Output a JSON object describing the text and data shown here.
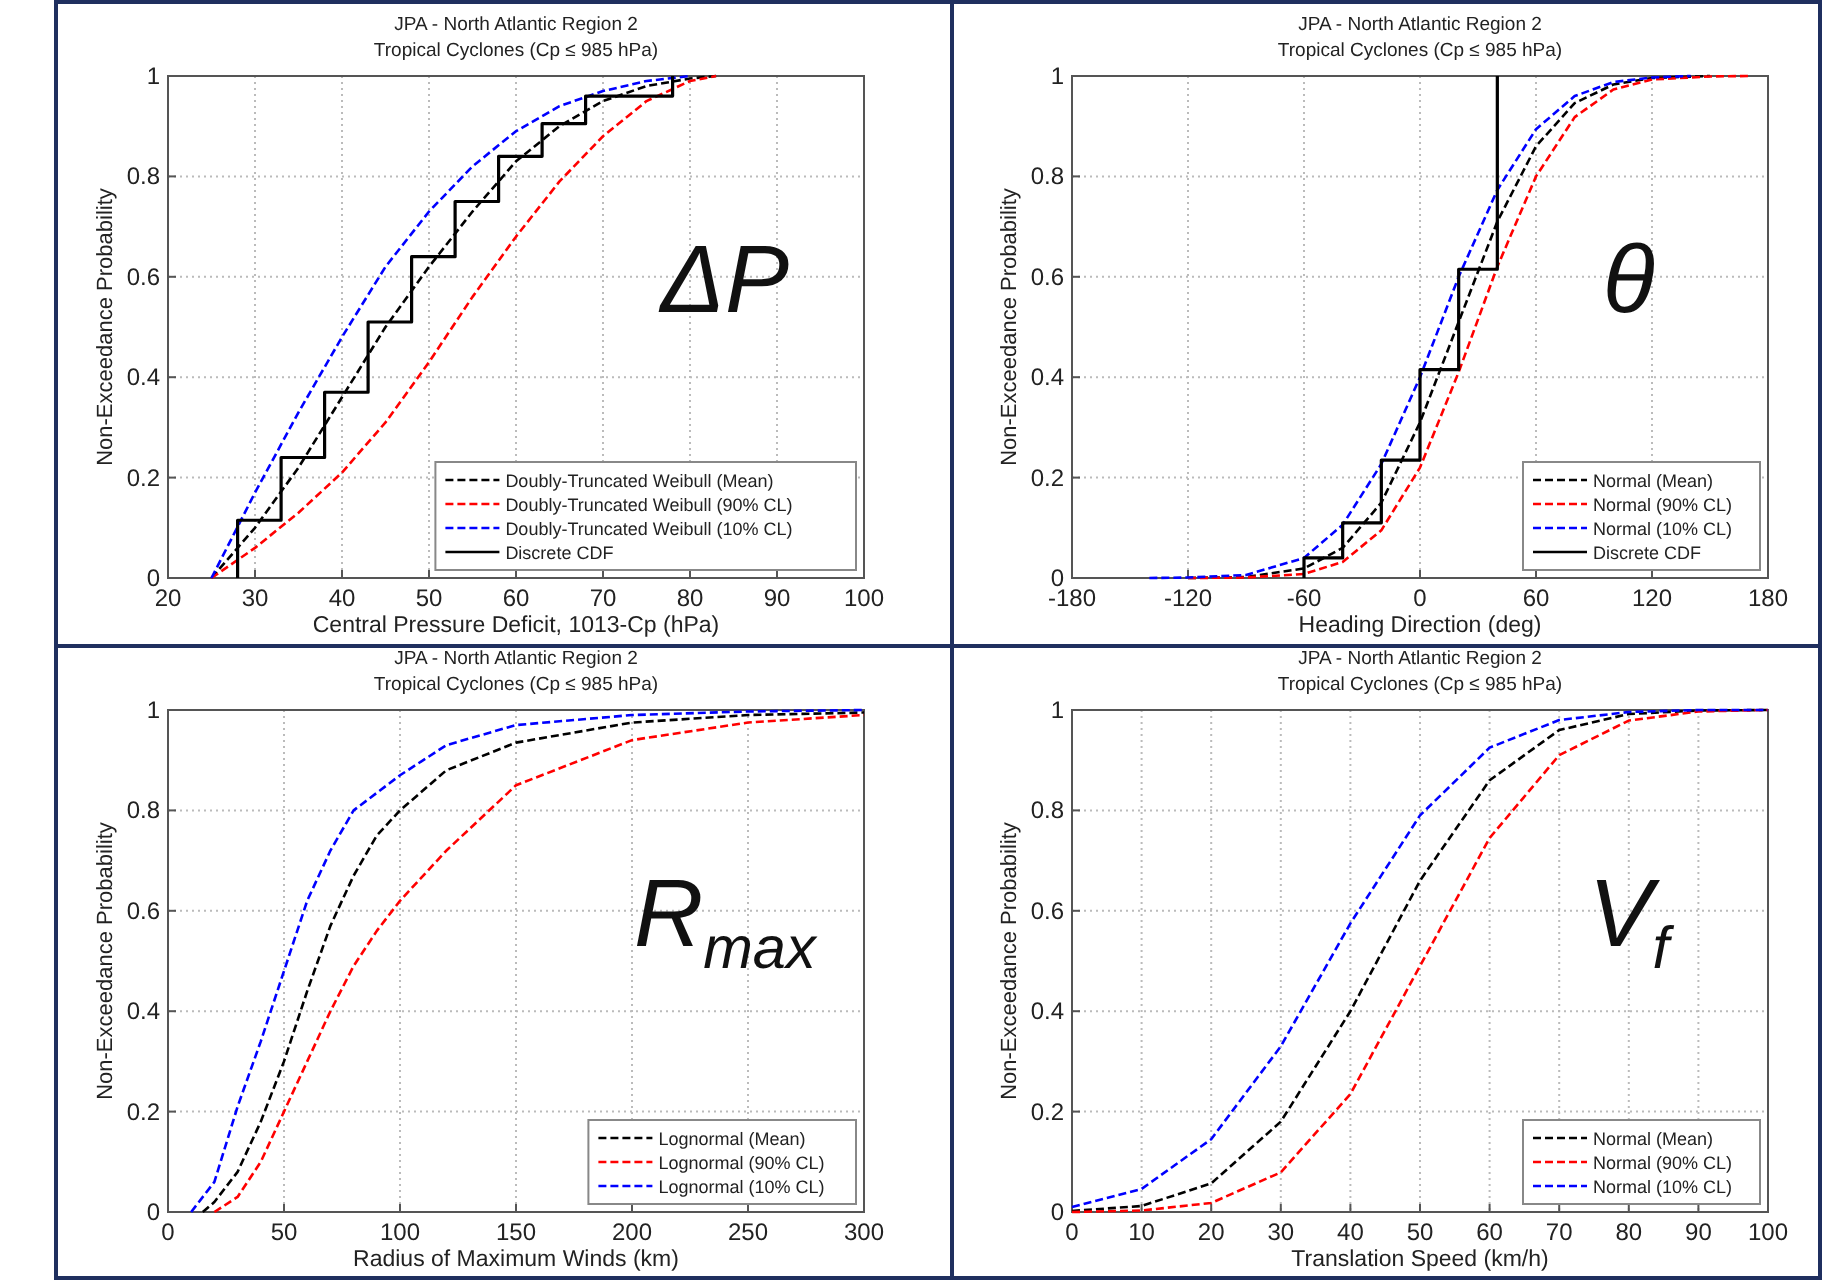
{
  "chart_data": [
    {
      "type": "line",
      "title": "JPA - North Atlantic Region 2",
      "subtitle": "Tropical Cyclones (Cp ≤ 985 hPa)",
      "xlabel": "Central Pressure Deficit, 1013-Cp (hPa)",
      "ylabel": "Non-Exceedance Probability",
      "xlim": [
        20,
        100
      ],
      "xticks": [
        20,
        30,
        40,
        50,
        60,
        70,
        80,
        90,
        100
      ],
      "ylim": [
        0,
        1
      ],
      "yticks": [
        0,
        0.2,
        0.4,
        0.6,
        0.8,
        1
      ],
      "grid": true,
      "legend": "bottom right",
      "annotations": [
        "ΔP"
      ],
      "series": [
        {
          "name": "Doubly-Truncated Weibull (Mean)",
          "color": "#000000",
          "line_style": "dashed",
          "x": [
            25,
            30,
            35,
            40,
            45,
            50,
            55,
            60,
            65,
            70,
            75,
            80,
            83
          ],
          "values": [
            0,
            0.1,
            0.22,
            0.36,
            0.5,
            0.62,
            0.73,
            0.83,
            0.9,
            0.95,
            0.98,
            0.995,
            1
          ]
        },
        {
          "name": "Doubly-Truncated Weibull (90% CL)",
          "color": "#ff0000",
          "line_style": "dashed",
          "x": [
            25,
            30,
            35,
            40,
            45,
            50,
            55,
            60,
            65,
            70,
            75,
            80,
            83
          ],
          "values": [
            0,
            0.06,
            0.13,
            0.21,
            0.31,
            0.43,
            0.56,
            0.68,
            0.79,
            0.88,
            0.95,
            0.99,
            1
          ]
        },
        {
          "name": "Doubly-Truncated Weibull (10% CL)",
          "color": "#0000ff",
          "line_style": "dashed",
          "x": [
            25,
            30,
            35,
            40,
            45,
            50,
            55,
            60,
            65,
            70,
            75,
            80
          ],
          "values": [
            0,
            0.17,
            0.33,
            0.48,
            0.62,
            0.73,
            0.82,
            0.89,
            0.94,
            0.97,
            0.99,
            1
          ]
        },
        {
          "name": "Discrete CDF",
          "type": "step",
          "color": "#000000",
          "line_style": "solid",
          "x": [
            28,
            28,
            33,
            38,
            43,
            48,
            53,
            58,
            63,
            68,
            78
          ],
          "values": [
            0,
            0.115,
            0.24,
            0.37,
            0.51,
            0.64,
            0.75,
            0.84,
            0.905,
            0.96,
            1
          ]
        }
      ]
    },
    {
      "type": "line",
      "title": "JPA - North Atlantic Region 2",
      "subtitle": "Tropical Cyclones (Cp ≤ 985 hPa)",
      "xlabel": "Heading Direction (deg)",
      "ylabel": "Non-Exceedance Probability",
      "xlim": [
        -180,
        180
      ],
      "xticks": [
        -180,
        -120,
        -60,
        0,
        60,
        120,
        180
      ],
      "ylim": [
        0,
        1
      ],
      "yticks": [
        0,
        0.2,
        0.4,
        0.6,
        0.8,
        1
      ],
      "grid": true,
      "legend": "bottom right",
      "annotations": [
        "θ"
      ],
      "series": [
        {
          "name": "Normal (Mean)",
          "color": "#000000",
          "line_style": "dashed",
          "x": [
            -120,
            -90,
            -60,
            -40,
            -20,
            0,
            20,
            40,
            60,
            80,
            100,
            120,
            150
          ],
          "values": [
            0,
            0.002,
            0.019,
            0.06,
            0.15,
            0.31,
            0.51,
            0.71,
            0.86,
            0.946,
            0.983,
            0.996,
            1
          ]
        },
        {
          "name": "Normal (90% CL)",
          "color": "#ff0000",
          "line_style": "dashed",
          "x": [
            -120,
            -90,
            -60,
            -40,
            -20,
            0,
            20,
            40,
            60,
            80,
            100,
            120,
            150,
            170
          ],
          "values": [
            0,
            0.001,
            0.008,
            0.032,
            0.095,
            0.22,
            0.41,
            0.62,
            0.8,
            0.918,
            0.973,
            0.993,
            0.999,
            1
          ]
        },
        {
          "name": "Normal (10% CL)",
          "color": "#0000ff",
          "line_style": "dashed",
          "x": [
            -140,
            -120,
            -90,
            -60,
            -40,
            -20,
            0,
            20,
            40,
            60,
            80,
            100,
            120,
            140
          ],
          "values": [
            0,
            0.001,
            0.006,
            0.04,
            0.106,
            0.227,
            0.4,
            0.6,
            0.773,
            0.894,
            0.96,
            0.988,
            0.997,
            1
          ]
        },
        {
          "name": "Discrete CDF",
          "type": "step",
          "color": "#000000",
          "line_style": "solid",
          "x": [
            -60,
            -60,
            -40,
            -20,
            0,
            20,
            40,
            40
          ],
          "values": [
            0,
            0.04,
            0.11,
            0.235,
            0.415,
            0.615,
            1,
            1
          ]
        }
      ]
    },
    {
      "type": "line",
      "title": "JPA - North Atlantic Region 2",
      "subtitle": "Tropical Cyclones (Cp ≤ 985 hPa)",
      "xlabel": "Radius of Maximum Winds (km)",
      "ylabel": "Non-Exceedance Probability",
      "xlim": [
        0,
        300
      ],
      "xticks": [
        0,
        50,
        100,
        150,
        200,
        250,
        300
      ],
      "ylim": [
        0,
        1
      ],
      "yticks": [
        0,
        0.2,
        0.4,
        0.6,
        0.8,
        1
      ],
      "grid": true,
      "legend": "bottom right",
      "annotations": [
        "R$_{max}$"
      ],
      "series": [
        {
          "name": "Lognormal (Mean)",
          "color": "#000000",
          "line_style": "dashed",
          "x": [
            15,
            20,
            30,
            40,
            50,
            60,
            70,
            80,
            90,
            100,
            120,
            150,
            200,
            250,
            300
          ],
          "values": [
            0,
            0.02,
            0.08,
            0.18,
            0.3,
            0.44,
            0.57,
            0.67,
            0.75,
            0.8,
            0.88,
            0.935,
            0.975,
            0.99,
            0.995
          ]
        },
        {
          "name": "Lognormal (90% CL)",
          "color": "#ff0000",
          "line_style": "dashed",
          "x": [
            20,
            30,
            40,
            50,
            60,
            70,
            80,
            90,
            100,
            120,
            150,
            200,
            250,
            300
          ],
          "values": [
            0,
            0.03,
            0.1,
            0.2,
            0.3,
            0.4,
            0.49,
            0.56,
            0.62,
            0.72,
            0.85,
            0.94,
            0.975,
            0.99
          ]
        },
        {
          "name": "Lognormal (10% CL)",
          "color": "#0000ff",
          "line_style": "dashed",
          "x": [
            10,
            20,
            30,
            40,
            50,
            60,
            70,
            80,
            100,
            120,
            150,
            200,
            250,
            300
          ],
          "values": [
            0,
            0.06,
            0.21,
            0.34,
            0.48,
            0.62,
            0.72,
            0.8,
            0.87,
            0.93,
            0.97,
            0.99,
            0.997,
            1
          ]
        }
      ]
    },
    {
      "type": "line",
      "title": "JPA - North Atlantic Region 2",
      "subtitle": "Tropical Cyclones (Cp ≤ 985 hPa)",
      "xlabel": "Translation Speed (km/h)",
      "ylabel": "Non-Exceedance Probability",
      "xlim": [
        0,
        100
      ],
      "xticks": [
        0,
        10,
        20,
        30,
        40,
        50,
        60,
        70,
        80,
        90,
        100
      ],
      "ylim": [
        0,
        1
      ],
      "yticks": [
        0,
        0.2,
        0.4,
        0.6,
        0.8,
        1
      ],
      "grid": true,
      "legend": "bottom right",
      "annotations": [
        "V$_{f}$"
      ],
      "series": [
        {
          "name": "Normal (Mean)",
          "color": "#000000",
          "line_style": "dashed",
          "x": [
            0,
            10,
            20,
            30,
            40,
            50,
            60,
            70,
            80,
            90,
            100
          ],
          "values": [
            0.002,
            0.012,
            0.057,
            0.18,
            0.4,
            0.66,
            0.86,
            0.96,
            0.992,
            0.999,
            1
          ]
        },
        {
          "name": "Normal (90% CL)",
          "color": "#ff0000",
          "line_style": "dashed",
          "x": [
            0,
            10,
            20,
            30,
            40,
            50,
            60,
            70,
            80,
            90,
            100
          ],
          "values": [
            0,
            0.003,
            0.018,
            0.079,
            0.235,
            0.49,
            0.745,
            0.91,
            0.979,
            0.997,
            1
          ]
        },
        {
          "name": "Normal (10% CL)",
          "color": "#0000ff",
          "line_style": "dashed",
          "x": [
            0,
            10,
            20,
            30,
            40,
            50,
            60,
            70,
            80,
            90,
            100
          ],
          "values": [
            0.01,
            0.046,
            0.145,
            0.33,
            0.575,
            0.79,
            0.925,
            0.98,
            0.996,
            1,
            1
          ]
        }
      ]
    }
  ]
}
